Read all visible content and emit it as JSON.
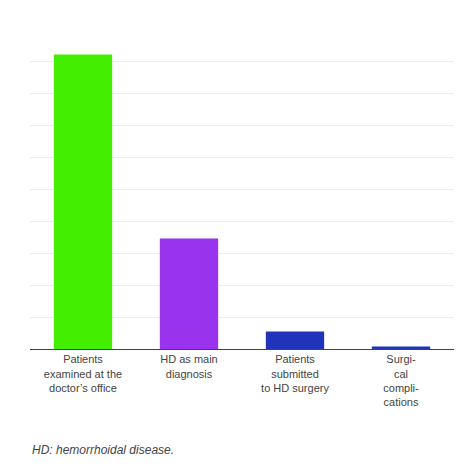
{
  "chart_data": {
    "type": "bar",
    "categories": [
      "Patients\nexamined at the\ndoctor’s office",
      "HD as main\ndiagnosis",
      "Patients\nsubmitted\nto HD surgery",
      "Surgi-\ncal\ncompli-\ncations"
    ],
    "values": [
      48000,
      18000,
      2840,
      400
    ],
    "colors": [
      "#44ee00",
      "#9933ee",
      "#2233bb",
      "#2233bb"
    ],
    "ylim": [
      0,
      52000
    ],
    "yticks": [
      0,
      5200,
      10400,
      15600,
      20800,
      26000,
      31200,
      36400,
      41600,
      46800,
      52000
    ],
    "grid": true,
    "tick_labels": "x",
    "annotations": [
      "HD: hemorrhoidal disease."
    ]
  }
}
